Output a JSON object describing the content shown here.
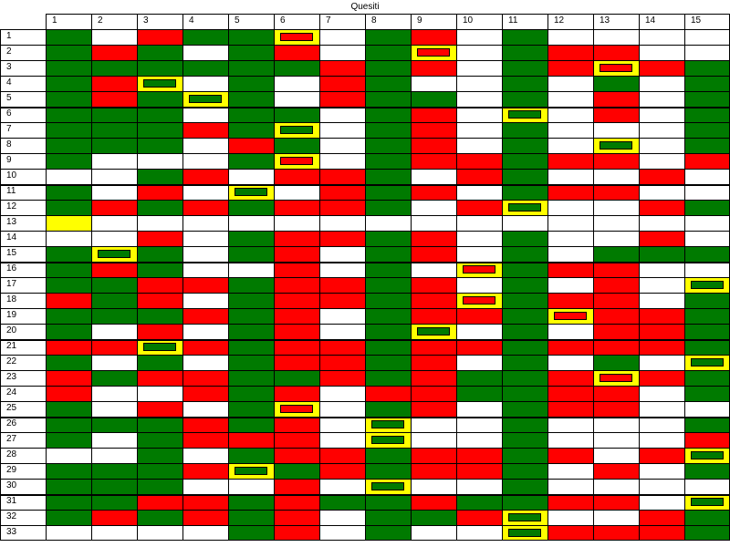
{
  "title": "Quesiti",
  "columns": [
    "1",
    "2",
    "3",
    "4",
    "5",
    "6",
    "7",
    "8",
    "9",
    "10",
    "11",
    "12",
    "13",
    "14",
    "15"
  ],
  "rows": [
    {
      "label": "1",
      "cells": [
        "G",
        "W",
        "R",
        "G",
        "G",
        "YR",
        "W",
        "G",
        "R",
        "W",
        "G",
        "W",
        "W",
        "W",
        "W"
      ]
    },
    {
      "label": "2",
      "cells": [
        "G",
        "R",
        "G",
        "W",
        "G",
        "R",
        "W",
        "G",
        "YR",
        "W",
        "G",
        "R",
        "R",
        "W",
        "W"
      ]
    },
    {
      "label": "3",
      "cells": [
        "G",
        "G",
        "G",
        "G",
        "G",
        "G",
        "R",
        "G",
        "R",
        "W",
        "G",
        "R",
        "YR",
        "R",
        "G"
      ]
    },
    {
      "label": "4",
      "cells": [
        "G",
        "R",
        "YG",
        "W",
        "G",
        "W",
        "R",
        "G",
        "W",
        "W",
        "G",
        "W",
        "G",
        "W",
        "G"
      ]
    },
    {
      "label": "5",
      "cells": [
        "G",
        "R",
        "G",
        "YG",
        "G",
        "W",
        "R",
        "G",
        "G",
        "W",
        "G",
        "W",
        "R",
        "W",
        "G"
      ]
    },
    {
      "label": "6",
      "cells": [
        "G",
        "G",
        "G",
        "W",
        "G",
        "G",
        "W",
        "G",
        "R",
        "W",
        "YG",
        "W",
        "R",
        "W",
        "G"
      ]
    },
    {
      "label": "7",
      "cells": [
        "G",
        "G",
        "G",
        "R",
        "G",
        "YG",
        "W",
        "G",
        "R",
        "W",
        "G",
        "W",
        "W",
        "W",
        "G"
      ]
    },
    {
      "label": "8",
      "cells": [
        "G",
        "G",
        "G",
        "W",
        "R",
        "G",
        "W",
        "G",
        "R",
        "W",
        "G",
        "W",
        "YG",
        "W",
        "G"
      ]
    },
    {
      "label": "9",
      "cells": [
        "G",
        "W",
        "W",
        "W",
        "G",
        "YR",
        "W",
        "G",
        "R",
        "R",
        "G",
        "R",
        "R",
        "W",
        "R"
      ]
    },
    {
      "label": "10",
      "cells": [
        "W",
        "W",
        "G",
        "R",
        "W",
        "R",
        "R",
        "G",
        "W",
        "R",
        "G",
        "W",
        "W",
        "R",
        "W"
      ]
    },
    {
      "label": "11",
      "cells": [
        "G",
        "W",
        "R",
        "W",
        "YG",
        "W",
        "R",
        "G",
        "R",
        "W",
        "G",
        "R",
        "R",
        "W",
        "W"
      ]
    },
    {
      "label": "12",
      "cells": [
        "G",
        "R",
        "G",
        "R",
        "G",
        "R",
        "R",
        "G",
        "W",
        "R",
        "YG",
        "W",
        "W",
        "R",
        "G"
      ]
    },
    {
      "label": "13",
      "cells": [
        "Y",
        "W",
        "W",
        "W",
        "W",
        "W",
        "W",
        "W",
        "W",
        "W",
        "W",
        "W",
        "W",
        "W",
        "W"
      ]
    },
    {
      "label": "14",
      "cells": [
        "W",
        "W",
        "R",
        "W",
        "G",
        "R",
        "R",
        "G",
        "R",
        "W",
        "G",
        "W",
        "W",
        "R",
        "W"
      ]
    },
    {
      "label": "15",
      "cells": [
        "G",
        "YG",
        "G",
        "W",
        "G",
        "R",
        "W",
        "G",
        "R",
        "W",
        "G",
        "W",
        "G",
        "G",
        "G"
      ]
    },
    {
      "label": "16",
      "cells": [
        "G",
        "R",
        "G",
        "W",
        "W",
        "R",
        "W",
        "G",
        "W",
        "YR",
        "G",
        "R",
        "R",
        "W",
        "W"
      ]
    },
    {
      "label": "17",
      "cells": [
        "G",
        "G",
        "R",
        "R",
        "G",
        "R",
        "R",
        "G",
        "R",
        "W",
        "G",
        "W",
        "R",
        "W",
        "YG"
      ]
    },
    {
      "label": "18",
      "cells": [
        "R",
        "G",
        "R",
        "W",
        "G",
        "R",
        "R",
        "G",
        "R",
        "YR",
        "G",
        "R",
        "R",
        "W",
        "G"
      ]
    },
    {
      "label": "19",
      "cells": [
        "G",
        "G",
        "G",
        "R",
        "G",
        "R",
        "W",
        "G",
        "R",
        "R",
        "G",
        "YR",
        "R",
        "R",
        "G"
      ]
    },
    {
      "label": "20",
      "cells": [
        "G",
        "W",
        "R",
        "W",
        "G",
        "R",
        "W",
        "G",
        "YG",
        "W",
        "G",
        "W",
        "R",
        "R",
        "G"
      ]
    },
    {
      "label": "21",
      "cells": [
        "R",
        "R",
        "YG",
        "R",
        "G",
        "R",
        "R",
        "G",
        "R",
        "R",
        "G",
        "R",
        "R",
        "R",
        "G"
      ]
    },
    {
      "label": "22",
      "cells": [
        "G",
        "W",
        "G",
        "W",
        "G",
        "R",
        "R",
        "G",
        "R",
        "W",
        "G",
        "W",
        "G",
        "W",
        "YG"
      ]
    },
    {
      "label": "23",
      "cells": [
        "R",
        "G",
        "R",
        "R",
        "G",
        "G",
        "R",
        "G",
        "R",
        "G",
        "G",
        "R",
        "YR",
        "R",
        "G"
      ]
    },
    {
      "label": "24",
      "cells": [
        "R",
        "W",
        "W",
        "R",
        "G",
        "R",
        "W",
        "R",
        "R",
        "G",
        "G",
        "R",
        "R",
        "W",
        "G"
      ]
    },
    {
      "label": "25",
      "cells": [
        "G",
        "W",
        "R",
        "W",
        "G",
        "YR",
        "W",
        "G",
        "R",
        "W",
        "G",
        "R",
        "R",
        "W",
        "W"
      ]
    },
    {
      "label": "26",
      "cells": [
        "G",
        "G",
        "G",
        "R",
        "G",
        "R",
        "W",
        "YG",
        "W",
        "W",
        "G",
        "W",
        "W",
        "W",
        "G"
      ]
    },
    {
      "label": "27",
      "cells": [
        "G",
        "W",
        "G",
        "R",
        "R",
        "R",
        "W",
        "YG",
        "W",
        "W",
        "G",
        "W",
        "W",
        "W",
        "R"
      ]
    },
    {
      "label": "28",
      "cells": [
        "W",
        "W",
        "G",
        "W",
        "G",
        "R",
        "R",
        "G",
        "R",
        "R",
        "G",
        "R",
        "W",
        "R",
        "YG"
      ]
    },
    {
      "label": "29",
      "cells": [
        "G",
        "G",
        "G",
        "R",
        "YG",
        "G",
        "R",
        "G",
        "R",
        "R",
        "G",
        "W",
        "R",
        "W",
        "G"
      ]
    },
    {
      "label": "30",
      "cells": [
        "G",
        "G",
        "G",
        "W",
        "W",
        "R",
        "W",
        "YG",
        "W",
        "W",
        "G",
        "W",
        "W",
        "W",
        "W"
      ]
    },
    {
      "label": "31",
      "cells": [
        "G",
        "G",
        "R",
        "R",
        "G",
        "R",
        "G",
        "G",
        "R",
        "G",
        "G",
        "R",
        "R",
        "W",
        "YG"
      ]
    },
    {
      "label": "32",
      "cells": [
        "G",
        "R",
        "G",
        "R",
        "G",
        "R",
        "W",
        "G",
        "G",
        "R",
        "YG",
        "W",
        "W",
        "R",
        "G"
      ]
    },
    {
      "label": "33",
      "cells": [
        "W",
        "W",
        "W",
        "W",
        "G",
        "R",
        "W",
        "G",
        "W",
        "W",
        "YG",
        "R",
        "R",
        "R",
        "G"
      ]
    }
  ],
  "colors": {
    "green": "#007a00",
    "red": "#ff0000",
    "white": "#ffffff",
    "yellow": "#ffff00"
  }
}
